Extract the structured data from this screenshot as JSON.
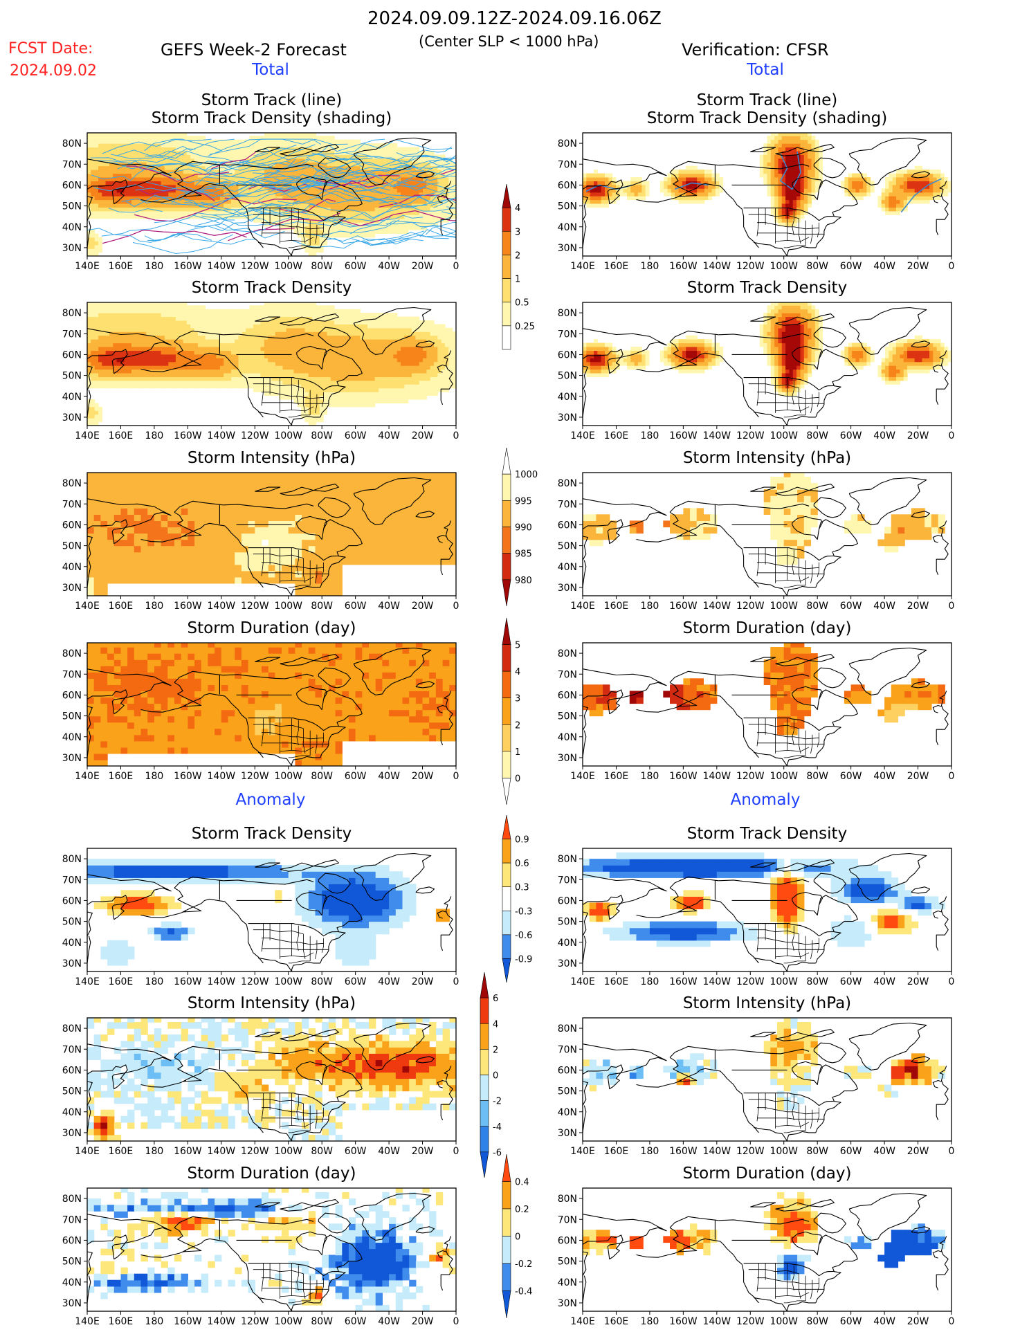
{
  "header": {
    "date_range": "2024.09.09.12Z-2024.09.16.06Z",
    "subtitle": "(Center SLP < 1000 hPa)",
    "fcst_label": "FCST Date:",
    "fcst_date": "2024.09.02",
    "left_title": "GEFS Week-2 Forecast",
    "right_title": "Verification: CFSR",
    "total_label": "Total",
    "anomaly_label": "Anomaly"
  },
  "panel_titles": {
    "storm_track_line": "Storm Track (line)",
    "storm_track_shading": "Storm Track Density (shading)",
    "density": "Storm Track Density",
    "intensity": "Storm Intensity (hPa)",
    "duration": "Storm Duration (day)"
  },
  "axes": {
    "lat_labels": [
      "80N",
      "70N",
      "60N",
      "50N",
      "40N",
      "30N"
    ],
    "lon_labels": [
      "140E",
      "160E",
      "180",
      "160W",
      "140W",
      "120W",
      "100W",
      "80W",
      "60W",
      "40W",
      "20W",
      "0"
    ]
  },
  "colorbars": {
    "total_density": [
      "4",
      "3",
      "2",
      "1",
      "0.5",
      "0.25"
    ],
    "total_intensity": [
      "1000",
      "995",
      "990",
      "985",
      "980"
    ],
    "total_duration": [
      "5",
      "4",
      "3",
      "2",
      "1",
      "0"
    ],
    "anom_density": [
      "0.9",
      "0.6",
      "0.3",
      "-0.3",
      "-0.6",
      "-0.9"
    ],
    "anom_intensity": [
      "6",
      "4",
      "2",
      "0",
      "-2",
      "-4",
      "-6"
    ],
    "anom_duration": [
      "0.4",
      "0.2",
      "0",
      "-0.2",
      "-0.4"
    ]
  },
  "colors": {
    "title_blue": "#1f3fff",
    "fcst_red": "#ff2020",
    "track_line": "#3aa8e8",
    "total_seq": [
      "#fff3a8",
      "#fdd060",
      "#f9a21a",
      "#f36a10",
      "#d92b10",
      "#a20808"
    ],
    "anom_pos": [
      "#fde67a",
      "#f9a21a",
      "#f04a10",
      "#a00808"
    ],
    "anom_neg": [
      "#c6ecfb",
      "#6cbef5",
      "#2f82e8",
      "#1058d8"
    ]
  }
}
